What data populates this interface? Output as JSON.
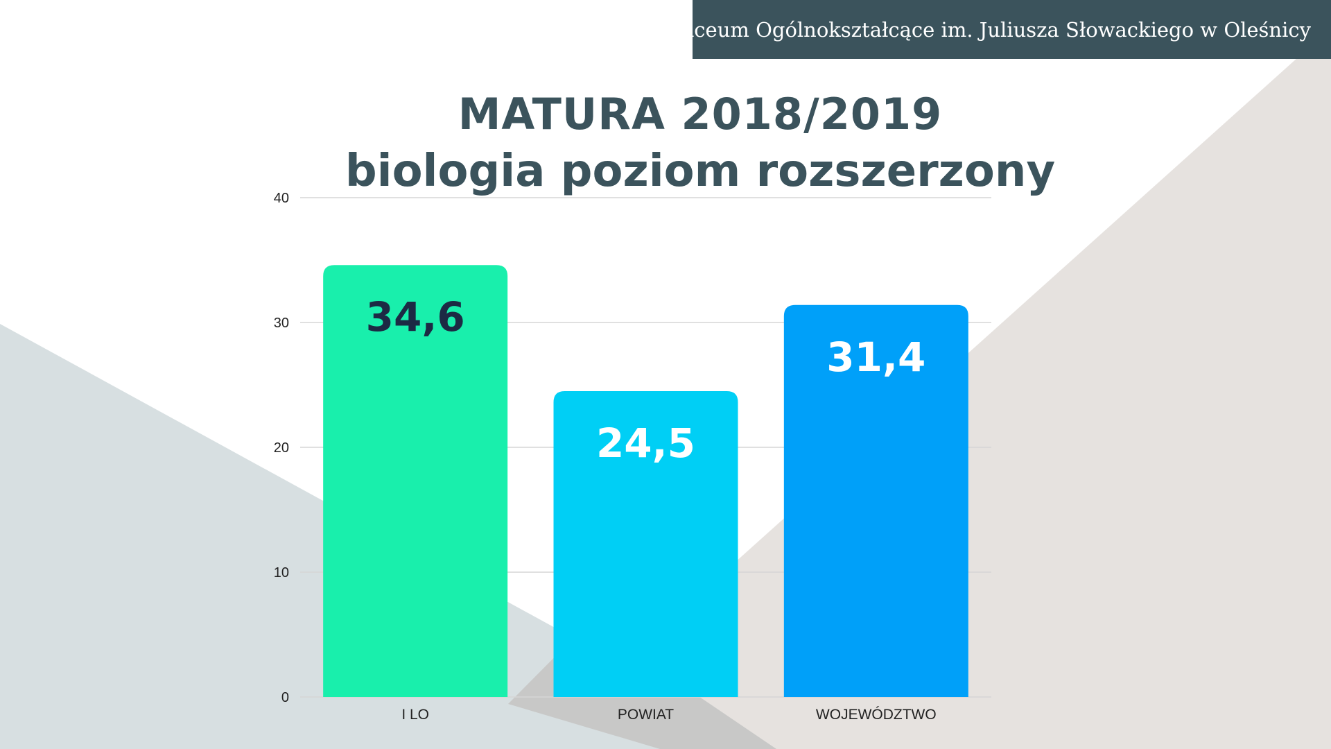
{
  "header": {
    "school_name": "I Liceum Ogólnokształcące im. Juliusza Słowackiego w Oleśnicy"
  },
  "colors": {
    "header_bg": "#3b535c",
    "title": "#3b535c",
    "bg_triangle_beige": "#e6e2df",
    "bg_triangle_gray": "#d7dfe1",
    "bg_overlap": "#c8c8c7"
  },
  "chart_data": {
    "type": "bar",
    "title": "MATURA 2018/2019",
    "subtitle": "biologia poziom rozszerzony",
    "categories": [
      "I LO",
      "POWIAT",
      "WOJEWÓDZTWO"
    ],
    "values": [
      34.6,
      24.5,
      31.4
    ],
    "value_labels": [
      "34,6",
      "24,5",
      "31,4"
    ],
    "bar_colors": [
      "#19efac",
      "#00cff5",
      "#00a0f9"
    ],
    "value_label_colors": [
      "#1c2a44",
      "#ffffff",
      "#ffffff"
    ],
    "ylim": [
      0,
      40
    ],
    "yticks": [
      0,
      10,
      20,
      30,
      40
    ],
    "grid": true,
    "legend": "none",
    "xlabel": "",
    "ylabel": ""
  }
}
